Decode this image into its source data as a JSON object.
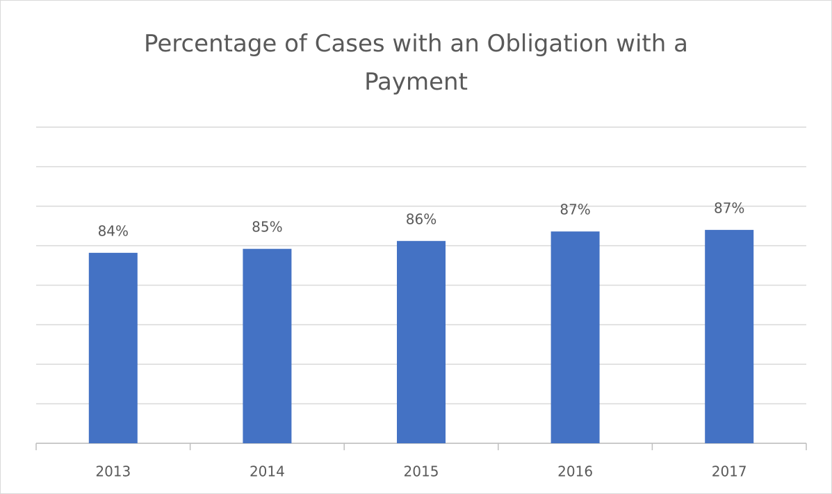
{
  "chart_data": {
    "type": "bar",
    "title": "Percentage of Cases with an Obligation with a Payment",
    "categories": [
      "2013",
      "2014",
      "2015",
      "2016",
      "2017"
    ],
    "values": [
      84.1,
      84.6,
      85.6,
      86.8,
      87.0
    ],
    "value_labels": [
      "84%",
      "85%",
      "86%",
      "87%",
      "87%"
    ],
    "color": "#4472c4",
    "ylim": [
      60,
      100
    ],
    "yticks": [
      60,
      65,
      70,
      75,
      80,
      85,
      90,
      95,
      100
    ],
    "show_ytick_labels": false,
    "grid": true
  }
}
